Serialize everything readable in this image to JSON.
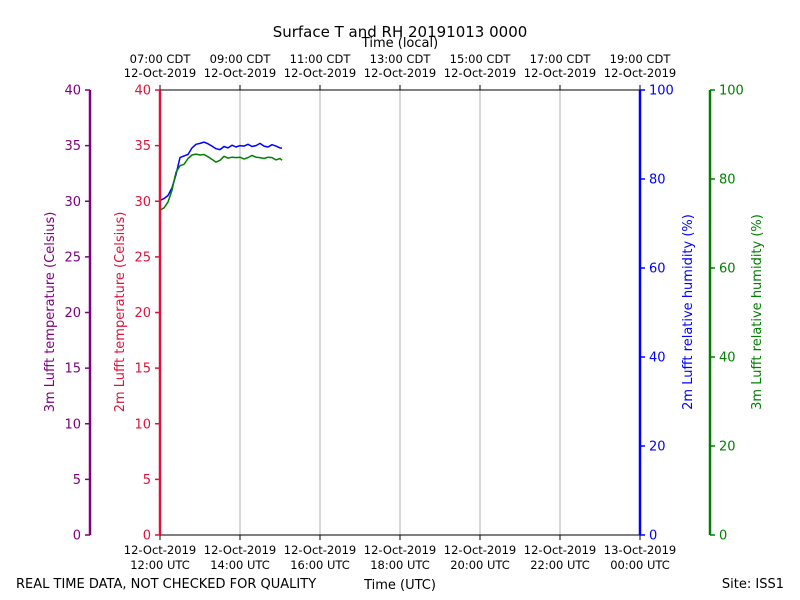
{
  "chart_data": {
    "type": "line",
    "title": "Surface T and RH 20191013 0000",
    "top_axis_label": "Time (local)",
    "xlabel": "Time (UTC)",
    "footer_left": "REAL TIME DATA, NOT CHECKED FOR QUALITY",
    "footer_right": "Site: ISS1",
    "x_range_utc_hours": [
      12,
      24
    ],
    "x_ticks_utc": [
      {
        "hour": 12,
        "line1": "12-Oct-2019",
        "line2": "12:00 UTC"
      },
      {
        "hour": 14,
        "line1": "12-Oct-2019",
        "line2": "14:00 UTC"
      },
      {
        "hour": 16,
        "line1": "12-Oct-2019",
        "line2": "16:00 UTC"
      },
      {
        "hour": 18,
        "line1": "12-Oct-2019",
        "line2": "18:00 UTC"
      },
      {
        "hour": 20,
        "line1": "12-Oct-2019",
        "line2": "20:00 UTC"
      },
      {
        "hour": 22,
        "line1": "12-Oct-2019",
        "line2": "22:00 UTC"
      },
      {
        "hour": 24,
        "line1": "13-Oct-2019",
        "line2": "00:00 UTC"
      }
    ],
    "x_ticks_local": [
      {
        "hour": 12,
        "line1": "07:00 CDT",
        "line2": "12-Oct-2019"
      },
      {
        "hour": 14,
        "line1": "09:00 CDT",
        "line2": "12-Oct-2019"
      },
      {
        "hour": 16,
        "line1": "11:00 CDT",
        "line2": "12-Oct-2019"
      },
      {
        "hour": 18,
        "line1": "13:00 CDT",
        "line2": "12-Oct-2019"
      },
      {
        "hour": 20,
        "line1": "15:00 CDT",
        "line2": "12-Oct-2019"
      },
      {
        "hour": 22,
        "line1": "17:00 CDT",
        "line2": "12-Oct-2019"
      },
      {
        "hour": 24,
        "line1": "19:00 CDT",
        "line2": "12-Oct-2019"
      }
    ],
    "axes": {
      "temp_3m": {
        "label": "3m Lufft temperature (Celsius)",
        "color": "#800080",
        "range": [
          0,
          40
        ],
        "ticks": [
          0,
          5,
          10,
          15,
          20,
          25,
          30,
          35,
          40
        ]
      },
      "temp_2m": {
        "label": "2m Lufft temperature (Celsius)",
        "color": "#dc143c",
        "range": [
          0,
          40
        ],
        "ticks": [
          0,
          5,
          10,
          15,
          20,
          25,
          30,
          35,
          40
        ]
      },
      "rh_2m": {
        "label": "2m Lufft relative humidity (%)",
        "color": "#0000ff",
        "range": [
          0,
          100
        ],
        "ticks": [
          0,
          20,
          40,
          60,
          80,
          100
        ]
      },
      "rh_3m": {
        "label": "3m Lufft relative humidity (%)",
        "color": "#008000",
        "range": [
          0,
          100
        ],
        "ticks": [
          0,
          20,
          40,
          60,
          80,
          100
        ]
      }
    },
    "grid": true,
    "series": [
      {
        "axis": "rh_2m",
        "color": "#0000ff",
        "x": [
          12.0,
          12.1,
          12.2,
          12.3,
          12.4,
          12.5,
          12.6,
          12.7,
          12.8,
          12.9,
          13.0,
          13.1,
          13.2,
          13.3,
          13.4,
          13.5,
          13.6,
          13.7,
          13.8,
          13.9,
          14.0,
          14.1,
          14.2,
          14.3,
          14.4,
          14.5,
          14.6,
          14.7,
          14.8,
          14.9,
          15.0,
          15.05
        ],
        "y": [
          75.2,
          75.6,
          76.3,
          78.0,
          81.0,
          84.8,
          85.2,
          85.5,
          87.0,
          87.8,
          88.0,
          88.3,
          87.9,
          87.4,
          86.8,
          86.6,
          87.3,
          87.0,
          87.6,
          87.2,
          87.5,
          87.4,
          87.8,
          87.3,
          87.5,
          88.0,
          87.4,
          87.2,
          87.7,
          87.4,
          87.0,
          86.9
        ]
      },
      {
        "axis": "rh_3m",
        "color": "#008000",
        "x": [
          12.0,
          12.1,
          12.2,
          12.3,
          12.4,
          12.5,
          12.6,
          12.7,
          12.8,
          12.9,
          13.0,
          13.1,
          13.2,
          13.3,
          13.4,
          13.5,
          13.6,
          13.7,
          13.8,
          13.9,
          14.0,
          14.1,
          14.2,
          14.3,
          14.4,
          14.5,
          14.6,
          14.7,
          14.8,
          14.9,
          15.0,
          15.05
        ],
        "y": [
          73.0,
          73.5,
          74.8,
          77.5,
          81.5,
          83.0,
          83.3,
          84.6,
          85.4,
          85.6,
          85.4,
          85.5,
          85.0,
          84.4,
          83.8,
          84.2,
          85.1,
          84.7,
          84.9,
          84.8,
          84.9,
          84.5,
          84.8,
          85.3,
          84.9,
          84.8,
          84.6,
          84.9,
          84.8,
          84.3,
          84.6,
          84.2
        ]
      }
    ]
  }
}
